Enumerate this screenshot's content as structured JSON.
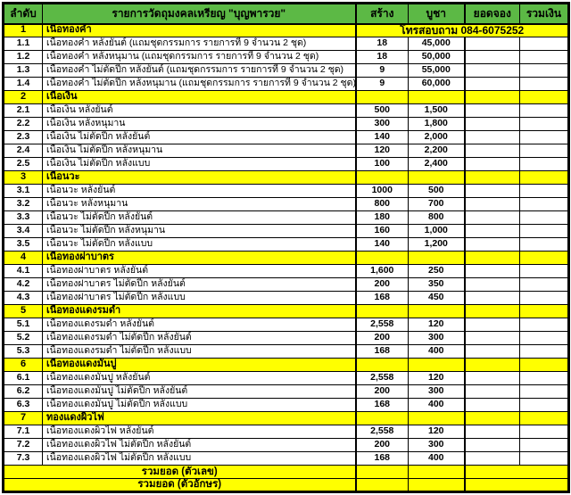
{
  "table": {
    "headers": [
      "ลำดับ",
      "รายการวัดถุมงคลเหรียญ \"บุญพารวย\"",
      "สร้าง",
      "บูชา",
      "ยอดจอง",
      "รวมเงิน"
    ]
  },
  "phone_note": "โทรสอบถาม 084-6075252",
  "sections": [
    {
      "no": "1",
      "title": "เนื้อทองคำ",
      "phone_banner": true,
      "rows": [
        {
          "no": "1.1",
          "item": "เนื้อทองคำ หลังยันต์ (แถมชุดกรรมการ รายการที่ 9 จำนวน 2 ชุด)",
          "made": "18",
          "price": "45,000",
          "reserved": "",
          "total": ""
        },
        {
          "no": "1.2",
          "item": "เนื้อทองคำ หลังหนุมาน (แถมชุดกรรมการ รายการที่ 9 จำนวน 2 ชุด)",
          "made": "18",
          "price": "50,000",
          "reserved": "",
          "total": ""
        },
        {
          "no": "1.3",
          "item": "เนื้อทองคำ ไม่ตัดปีก หลังยันต์ (แถมชุดกรรมการ รายการที่ 9 จำนวน 2 ชุด)",
          "made": "9",
          "price": "55,000",
          "reserved": "",
          "total": ""
        },
        {
          "no": "1.4",
          "item": "เนื้อทองคำ ไม่ตัดปีก หลังหนุมาน (แถมชุดกรรมการ รายการที่ 9 จำนวน 2 ชุด)",
          "made": "9",
          "price": "60,000",
          "reserved": "",
          "total": ""
        }
      ]
    },
    {
      "no": "2",
      "title": "เนื้อเงิน",
      "phone_banner": false,
      "rows": [
        {
          "no": "2.1",
          "item": "เนื้อเงิน หลังยันต์",
          "made": "500",
          "price": "1,500",
          "reserved": "",
          "total": ""
        },
        {
          "no": "2.2",
          "item": "เนื้อเงิน หลังหนุมาน",
          "made": "300",
          "price": "1,800",
          "reserved": "",
          "total": ""
        },
        {
          "no": "2.3",
          "item": "เนื้อเงิน ไม่ตัดปีก หลังยันต์",
          "made": "140",
          "price": "2,000",
          "reserved": "",
          "total": ""
        },
        {
          "no": "2.4",
          "item": "เนื้อเงิน ไม่ตัดปีก หลังหนุมาน",
          "made": "120",
          "price": "2,200",
          "reserved": "",
          "total": ""
        },
        {
          "no": "2.5",
          "item": "เนื้อเงิน ไม่ตัดปีก หลังแบบ",
          "made": "100",
          "price": "2,400",
          "reserved": "",
          "total": ""
        }
      ]
    },
    {
      "no": "3",
      "title": "เนื้อนวะ",
      "phone_banner": false,
      "rows": [
        {
          "no": "3.1",
          "item": "เนื้อนวะ หลังยันต์",
          "made": "1000",
          "price": "500",
          "reserved": "",
          "total": ""
        },
        {
          "no": "3.2",
          "item": "เนื้อนวะ หลังหนุมาน",
          "made": "800",
          "price": "700",
          "reserved": "",
          "total": ""
        },
        {
          "no": "3.3",
          "item": "เนื้อนวะ ไม่ตัดปีก หลังยันต์",
          "made": "180",
          "price": "800",
          "reserved": "",
          "total": ""
        },
        {
          "no": "3.4",
          "item": "เนื้อนวะ ไม่ตัดปีก หลังหนุมาน",
          "made": "160",
          "price": "1,000",
          "reserved": "",
          "total": ""
        },
        {
          "no": "3.5",
          "item": "เนื้อนวะ ไม่ตัดปีก หลังแบบ",
          "made": "140",
          "price": "1,200",
          "reserved": "",
          "total": ""
        }
      ]
    },
    {
      "no": "4",
      "title": "เนื้อทองฝาบาตร",
      "phone_banner": false,
      "rows": [
        {
          "no": "4.1",
          "item": "เนื้อทองฝาบาตร หลังยันต์",
          "made": "1,600",
          "price": "250",
          "reserved": "",
          "total": ""
        },
        {
          "no": "4.2",
          "item": "เนื้อทองฝาบาตร ไม่ตัดปีก หลังยันต์",
          "made": "200",
          "price": "350",
          "reserved": "",
          "total": ""
        },
        {
          "no": "4.3",
          "item": "เนื้อทองฝาบาตร ไม่ตัดปีก หลังแบบ",
          "made": "168",
          "price": "450",
          "reserved": "",
          "total": ""
        }
      ]
    },
    {
      "no": "5",
      "title": "เนื้อทองแดงรมดำ",
      "phone_banner": false,
      "rows": [
        {
          "no": "5.1",
          "item": "เนื้อทองแดงรมดำ หลังยันต์",
          "made": "2,558",
          "price": "120",
          "reserved": "",
          "total": ""
        },
        {
          "no": "5.2",
          "item": "เนื้อทองแดงรมดำ ไม่ตัดปีก หลังยันต์",
          "made": "200",
          "price": "300",
          "reserved": "",
          "total": ""
        },
        {
          "no": "5.3",
          "item": "เนื้อทองแดงรมดำ ไม่ตัดปีก หลังแบบ",
          "made": "168",
          "price": "400",
          "reserved": "",
          "total": ""
        }
      ]
    },
    {
      "no": "6",
      "title": "เนื้อทองแดงมันปู",
      "phone_banner": false,
      "rows": [
        {
          "no": "6.1",
          "item": "เนื้อทองแดงมันปู หลังยันต์",
          "made": "2,558",
          "price": "120",
          "reserved": "",
          "total": ""
        },
        {
          "no": "6.2",
          "item": "เนื้อทองแดงมันปู ไม่ตัดปีก หลังยันต์",
          "made": "200",
          "price": "300",
          "reserved": "",
          "total": ""
        },
        {
          "no": "6.3",
          "item": "เนื้อทองแดงมันปู ไม่ตัดปีก หลังแบบ",
          "made": "168",
          "price": "400",
          "reserved": "",
          "total": ""
        }
      ]
    },
    {
      "no": "7",
      "title": "ทองแดงผิวไฟ",
      "phone_banner": false,
      "rows": [
        {
          "no": "7.1",
          "item": "เนื้อทองแดงผิวไฟ หลังยันต์",
          "made": "2,558",
          "price": "120",
          "reserved": "",
          "total": ""
        },
        {
          "no": "7.2",
          "item": "เนื้อทองแดงผิวไฟ ไม่ตัดปีก หลังยันต์",
          "made": "200",
          "price": "300",
          "reserved": "",
          "total": ""
        },
        {
          "no": "7.3",
          "item": "เนื้อทองแดงผิวไฟ ไม่ตัดปีก หลังแบบ",
          "made": "168",
          "price": "400",
          "reserved": "",
          "total": ""
        }
      ]
    }
  ],
  "footer": {
    "rows": [
      {
        "label": "รวมยอด (ตัวเลข)",
        "made": "",
        "price": "",
        "merged_right": ""
      },
      {
        "label": "รวมยอด (ตัวอักษร)",
        "made": "",
        "price": "",
        "merged_right": ""
      }
    ]
  },
  "colors": {
    "header_green": "#5cb945",
    "section_yellow": "#ffff00",
    "border": "#000000",
    "row_background": "#ffffff",
    "text": "#000000"
  }
}
